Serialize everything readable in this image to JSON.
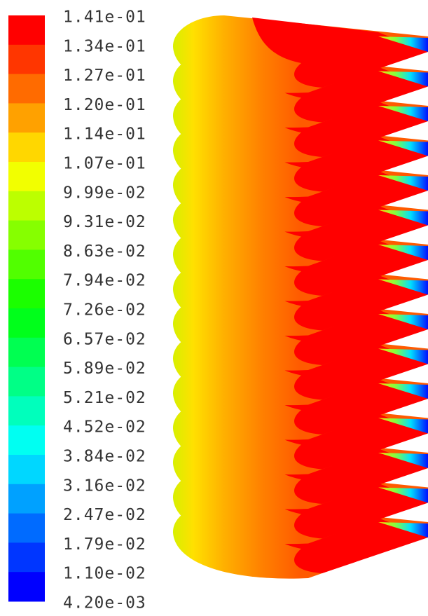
{
  "colorbar": {
    "labels": [
      "1.41e-01",
      "1.34e-01",
      "1.27e-01",
      "1.20e-01",
      "1.14e-01",
      "1.07e-01",
      "9.99e-02",
      "9.31e-02",
      "8.63e-02",
      "7.94e-02",
      "7.26e-02",
      "6.57e-02",
      "5.89e-02",
      "5.21e-02",
      "4.52e-02",
      "3.84e-02",
      "3.16e-02",
      "2.47e-02",
      "1.79e-02",
      "1.10e-02",
      "4.20e-03"
    ]
  }
}
